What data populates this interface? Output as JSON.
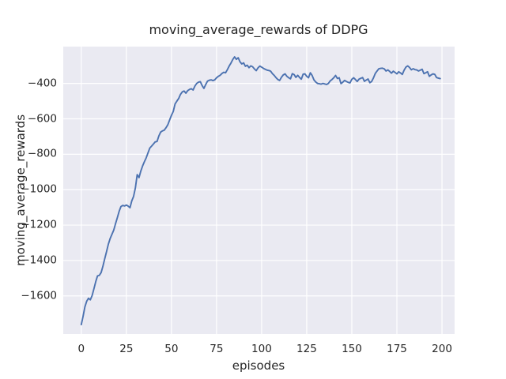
{
  "figure": {
    "background_color": "#ffffff"
  },
  "chart_data": {
    "type": "line",
    "title": "moving_average_rewards of DDPG",
    "xlabel": "episodes",
    "ylabel": "moving_average_rewards",
    "xlim": [
      -10,
      207
    ],
    "ylim": [
      -1815,
      -192
    ],
    "xticks": [
      0,
      25,
      50,
      75,
      100,
      125,
      150,
      175,
      200
    ],
    "yticks": [
      -400,
      -600,
      -800,
      -1000,
      -1200,
      -1400,
      -1600
    ],
    "grid": true,
    "legend": "none",
    "style": {
      "line_color": "#4c72b0",
      "axes_background": "#eaeaf2",
      "grid_color": "#ffffff",
      "text_color": "#262626",
      "line_width": 1.9
    },
    "series": [
      {
        "name": "moving_average_rewards",
        "x": [
          0,
          1,
          2,
          3,
          4,
          5,
          6,
          7,
          8,
          9,
          10,
          11,
          12,
          13,
          14,
          15,
          16,
          17,
          18,
          19,
          20,
          21,
          22,
          23,
          24,
          25,
          26,
          27,
          28,
          29,
          30,
          31,
          32,
          33,
          34,
          35,
          36,
          37,
          38,
          39,
          40,
          41,
          42,
          43,
          44,
          45,
          46,
          47,
          48,
          49,
          50,
          51,
          52,
          53,
          54,
          55,
          56,
          57,
          58,
          59,
          60,
          61,
          62,
          63,
          64,
          65,
          66,
          67,
          68,
          69,
          70,
          71,
          72,
          73,
          74,
          75,
          76,
          77,
          78,
          79,
          80,
          81,
          82,
          83,
          84,
          85,
          86,
          87,
          88,
          89,
          90,
          91,
          92,
          93,
          94,
          95,
          96,
          97,
          98,
          99,
          100,
          101,
          102,
          103,
          104,
          105,
          106,
          107,
          108,
          109,
          110,
          111,
          112,
          113,
          114,
          115,
          116,
          117,
          118,
          119,
          120,
          121,
          122,
          123,
          124,
          125,
          126,
          127,
          128,
          129,
          130,
          131,
          132,
          133,
          134,
          135,
          136,
          137,
          138,
          139,
          140,
          141,
          142,
          143,
          144,
          145,
          146,
          147,
          148,
          149,
          150,
          151,
          152,
          153,
          154,
          155,
          156,
          157,
          158,
          159,
          160,
          161,
          162,
          163,
          164,
          165,
          166,
          167,
          168,
          169,
          170,
          171,
          172,
          173,
          174,
          175,
          176,
          177,
          178,
          179,
          180,
          181,
          182,
          183,
          184,
          185,
          186,
          187,
          188,
          189,
          190,
          191,
          192,
          193,
          194,
          195,
          196,
          197,
          198,
          199
        ],
        "y": [
          -1762,
          -1715,
          -1662,
          -1630,
          -1613,
          -1622,
          -1598,
          -1560,
          -1520,
          -1487,
          -1484,
          -1468,
          -1432,
          -1390,
          -1350,
          -1308,
          -1276,
          -1252,
          -1228,
          -1192,
          -1158,
          -1122,
          -1095,
          -1089,
          -1092,
          -1087,
          -1093,
          -1102,
          -1063,
          -1038,
          -990,
          -915,
          -932,
          -895,
          -866,
          -842,
          -820,
          -792,
          -765,
          -754,
          -742,
          -730,
          -728,
          -697,
          -675,
          -668,
          -664,
          -650,
          -633,
          -606,
          -580,
          -558,
          -516,
          -500,
          -485,
          -462,
          -448,
          -443,
          -455,
          -441,
          -434,
          -430,
          -437,
          -415,
          -400,
          -393,
          -390,
          -412,
          -428,
          -406,
          -387,
          -382,
          -380,
          -384,
          -380,
          -368,
          -360,
          -354,
          -344,
          -337,
          -340,
          -322,
          -302,
          -285,
          -265,
          -250,
          -264,
          -255,
          -278,
          -290,
          -284,
          -303,
          -297,
          -311,
          -301,
          -306,
          -318,
          -328,
          -312,
          -302,
          -308,
          -315,
          -320,
          -325,
          -327,
          -331,
          -345,
          -355,
          -368,
          -378,
          -383,
          -365,
          -352,
          -346,
          -360,
          -368,
          -374,
          -345,
          -350,
          -366,
          -354,
          -366,
          -376,
          -348,
          -346,
          -360,
          -368,
          -340,
          -355,
          -380,
          -392,
          -400,
          -402,
          -404,
          -400,
          -403,
          -406,
          -400,
          -386,
          -378,
          -368,
          -355,
          -372,
          -368,
          -401,
          -393,
          -383,
          -389,
          -394,
          -397,
          -377,
          -368,
          -378,
          -389,
          -376,
          -371,
          -367,
          -388,
          -381,
          -375,
          -396,
          -389,
          -369,
          -344,
          -330,
          -317,
          -315,
          -314,
          -318,
          -330,
          -324,
          -332,
          -342,
          -331,
          -338,
          -346,
          -334,
          -341,
          -349,
          -325,
          -308,
          -301,
          -310,
          -323,
          -317,
          -322,
          -324,
          -330,
          -325,
          -320,
          -345,
          -340,
          -334,
          -360,
          -352,
          -346,
          -349,
          -367,
          -370,
          -373
        ]
      }
    ]
  }
}
